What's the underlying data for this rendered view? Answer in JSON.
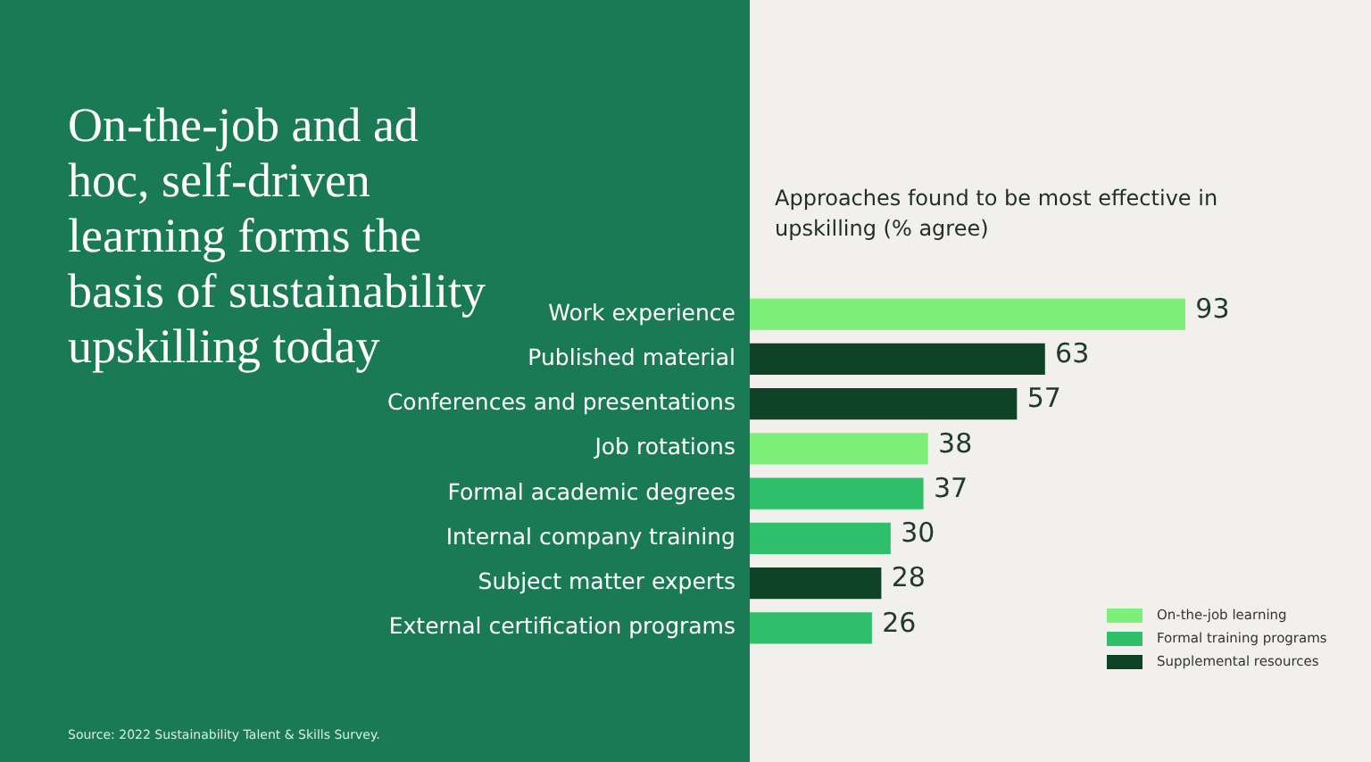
{
  "chart_data": {
    "type": "bar",
    "orientation": "horizontal",
    "title": "On-the-job and ad hoc, self-driven learning forms the basis of sustainability upskilling today",
    "subtitle": "Approaches found to be most effective in upskilling (% agree)",
    "categories": [
      "Work experience",
      "Published material",
      "Conferences and presentations",
      "Job rotations",
      "Formal academic degrees",
      "Internal company training",
      "Subject matter experts",
      "External certification programs"
    ],
    "series": [
      {
        "name": "On-the-job learning",
        "color": "#7df07a",
        "values": [
          93,
          null,
          null,
          38,
          null,
          null,
          null,
          null
        ]
      },
      {
        "name": "Formal training programs",
        "color": "#2fbf6a",
        "values": [
          null,
          null,
          null,
          null,
          37,
          30,
          null,
          26
        ]
      },
      {
        "name": "Supplemental resources",
        "color": "#0f4327",
        "values": [
          null,
          63,
          57,
          null,
          null,
          null,
          28,
          null
        ]
      }
    ],
    "data_labels": true,
    "legend": "bottom right",
    "tick_labels": "y",
    "annotations": [
      "Source: 2022 Sustainability Talent & Skills Survey."
    ]
  }
}
